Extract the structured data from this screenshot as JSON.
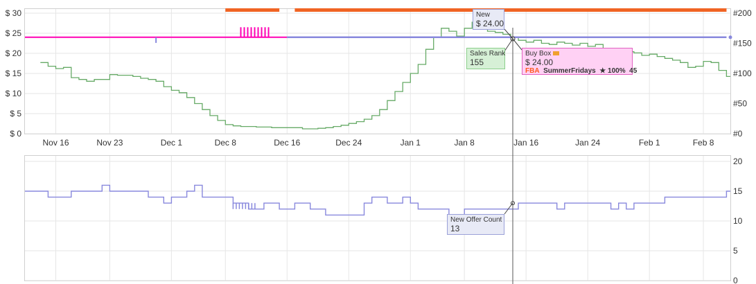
{
  "colors": {
    "amazon": "#f06424",
    "buybox": "#ff00b4",
    "new": "#8888dd",
    "sales_rank": "#66aa66",
    "offer_count": "#8888dd",
    "grid": "#e6e6e6",
    "cursor": "#555555"
  },
  "chart_data": [
    {
      "type": "line",
      "x_axis": {
        "type": "date",
        "tick_labels": [
          "Nov 16",
          "Nov 23",
          "Dec 1",
          "Dec 8",
          "Dec 16",
          "Dec 24",
          "Jan 1",
          "Jan 8",
          "Jan 16",
          "Jan 24",
          "Feb 1",
          "Feb 8"
        ]
      },
      "left_axis": {
        "ticks": [
          "$ 0",
          "$ 5",
          "$ 10",
          "$ 15",
          "$ 20",
          "$ 25",
          "$ 30"
        ],
        "range": [
          0,
          30
        ]
      },
      "right_axis": {
        "ticks": [
          "#0",
          "#50",
          "#100",
          "#150",
          "#200"
        ],
        "range": [
          0,
          200
        ]
      },
      "series": [
        {
          "name": "Sales Rank",
          "axis": "right",
          "values": [
            [
              "2023-11-14",
              118
            ],
            [
              "2023-11-15",
              112
            ],
            [
              "2023-11-16",
              108
            ],
            [
              "2023-11-17",
              110
            ],
            [
              "2023-11-18",
              93
            ],
            [
              "2023-11-19",
              90
            ],
            [
              "2023-11-20",
              87
            ],
            [
              "2023-11-21",
              90
            ],
            [
              "2023-11-23",
              98
            ],
            [
              "2023-11-24",
              97
            ],
            [
              "2023-11-26",
              95
            ],
            [
              "2023-11-27",
              92
            ],
            [
              "2023-11-28",
              90
            ],
            [
              "2023-11-29",
              87
            ],
            [
              "2023-11-30",
              78
            ],
            [
              "2023-12-01",
              72
            ],
            [
              "2023-12-02",
              68
            ],
            [
              "2023-12-03",
              60
            ],
            [
              "2023-12-04",
              50
            ],
            [
              "2023-12-05",
              40
            ],
            [
              "2023-12-06",
              30
            ],
            [
              "2023-12-07",
              22
            ],
            [
              "2023-12-08",
              15
            ],
            [
              "2023-12-09",
              13
            ],
            [
              "2023-12-10",
              12
            ],
            [
              "2023-12-12",
              11
            ],
            [
              "2023-12-14",
              10
            ],
            [
              "2023-12-16",
              10
            ],
            [
              "2023-12-18",
              8
            ],
            [
              "2023-12-20",
              9
            ],
            [
              "2023-12-21",
              10
            ],
            [
              "2023-12-22",
              12
            ],
            [
              "2023-12-23",
              14
            ],
            [
              "2023-12-24",
              17
            ],
            [
              "2023-12-25",
              20
            ],
            [
              "2023-12-26",
              24
            ],
            [
              "2023-12-27",
              30
            ],
            [
              "2023-12-28",
              40
            ],
            [
              "2023-12-29",
              55
            ],
            [
              "2023-12-30",
              70
            ],
            [
              "2023-12-31",
              85
            ],
            [
              "2024-01-01",
              100
            ],
            [
              "2024-01-02",
              115
            ],
            [
              "2024-01-03",
              140
            ],
            [
              "2024-01-04",
              160
            ],
            [
              "2024-01-05",
              175
            ],
            [
              "2024-01-06",
              170
            ],
            [
              "2024-01-07",
              162
            ],
            [
              "2024-01-08",
              175
            ],
            [
              "2024-01-09",
              185
            ],
            [
              "2024-01-10",
              180
            ],
            [
              "2024-01-11",
              170
            ],
            [
              "2024-01-12",
              168
            ],
            [
              "2024-01-13",
              165
            ],
            [
              "2024-01-14",
              160
            ],
            [
              "2024-01-15",
              155
            ],
            [
              "2024-01-16",
              152
            ],
            [
              "2024-01-17",
              155
            ],
            [
              "2024-01-18",
              150
            ],
            [
              "2024-01-19",
              148
            ],
            [
              "2024-01-20",
              152
            ],
            [
              "2024-01-21",
              150
            ],
            [
              "2024-01-22",
              147
            ],
            [
              "2024-01-23",
              150
            ],
            [
              "2024-01-24",
              145
            ],
            [
              "2024-01-25",
              148
            ],
            [
              "2024-01-26",
              140
            ],
            [
              "2024-01-27",
              138
            ],
            [
              "2024-01-28",
              135
            ],
            [
              "2024-01-29",
              136
            ],
            [
              "2024-01-30",
              134
            ],
            [
              "2024-01-31",
              130
            ],
            [
              "2024-02-01",
              132
            ],
            [
              "2024-02-02",
              128
            ],
            [
              "2024-02-03",
              125
            ],
            [
              "2024-02-04",
              122
            ],
            [
              "2024-02-05",
              118
            ],
            [
              "2024-02-06",
              110
            ],
            [
              "2024-02-07",
              112
            ],
            [
              "2024-02-08",
              120
            ],
            [
              "2024-02-09",
              118
            ],
            [
              "2024-02-10",
              105
            ],
            [
              "2024-02-11",
              95
            ]
          ]
        },
        {
          "name": "Buy Box",
          "axis": "left",
          "values": [
            [
              "2023-11-12",
              24.0
            ],
            [
              "2023-12-16",
              24.0
            ]
          ]
        },
        {
          "name": "New",
          "axis": "left",
          "values": [
            [
              "2023-12-16",
              24.0
            ],
            [
              "2024-02-11",
              24.0
            ]
          ]
        }
      ],
      "tooltips": {
        "new": {
          "label": "New",
          "value": "$ 24.00"
        },
        "sales_rank": {
          "label": "Sales Rank",
          "value": "155"
        },
        "buy_box": {
          "label": "Buy Box",
          "value": "$ 24.00",
          "fba": "FBA",
          "seller": "SummerFridays",
          "rating": "★ 100%",
          "count": "45"
        }
      }
    },
    {
      "type": "line",
      "right_axis": {
        "ticks": [
          "0",
          "5",
          "10",
          "15",
          "20"
        ],
        "range": [
          0,
          20
        ]
      },
      "series": [
        {
          "name": "New Offer Count",
          "values": [
            [
              "2023-11-12",
              15
            ],
            [
              "2023-11-15",
              14
            ],
            [
              "2023-11-18",
              15
            ],
            [
              "2023-11-20",
              15
            ],
            [
              "2023-11-22",
              16
            ],
            [
              "2023-11-23",
              15
            ],
            [
              "2023-11-28",
              14
            ],
            [
              "2023-11-30",
              13
            ],
            [
              "2023-12-01",
              14
            ],
            [
              "2023-12-03",
              15
            ],
            [
              "2023-12-04",
              16
            ],
            [
              "2023-12-05",
              14
            ],
            [
              "2023-12-09",
              13
            ],
            [
              "2023-12-11",
              12
            ],
            [
              "2023-12-13",
              13
            ],
            [
              "2023-12-15",
              12
            ],
            [
              "2023-12-17",
              13
            ],
            [
              "2023-12-19",
              12
            ],
            [
              "2023-12-21",
              11
            ],
            [
              "2023-12-25",
              11
            ],
            [
              "2023-12-26",
              13
            ],
            [
              "2023-12-27",
              14
            ],
            [
              "2023-12-29",
              13
            ],
            [
              "2023-12-31",
              14
            ],
            [
              "2024-01-01",
              13
            ],
            [
              "2024-01-02",
              12
            ],
            [
              "2024-01-05",
              12
            ],
            [
              "2024-01-06",
              11
            ],
            [
              "2024-01-08",
              12
            ],
            [
              "2024-01-13",
              12
            ],
            [
              "2024-01-15",
              13
            ],
            [
              "2024-01-19",
              13
            ],
            [
              "2024-01-20",
              12
            ],
            [
              "2024-01-21",
              13
            ],
            [
              "2024-01-26",
              13
            ],
            [
              "2024-01-27",
              12
            ],
            [
              "2024-01-28",
              13
            ],
            [
              "2024-01-29",
              12
            ],
            [
              "2024-01-30",
              13
            ],
            [
              "2024-02-03",
              14
            ],
            [
              "2024-02-10",
              14
            ],
            [
              "2024-02-11",
              15
            ]
          ]
        }
      ],
      "tooltips": {
        "offer_count": {
          "label": "New Offer Count",
          "value": "13"
        }
      }
    }
  ]
}
